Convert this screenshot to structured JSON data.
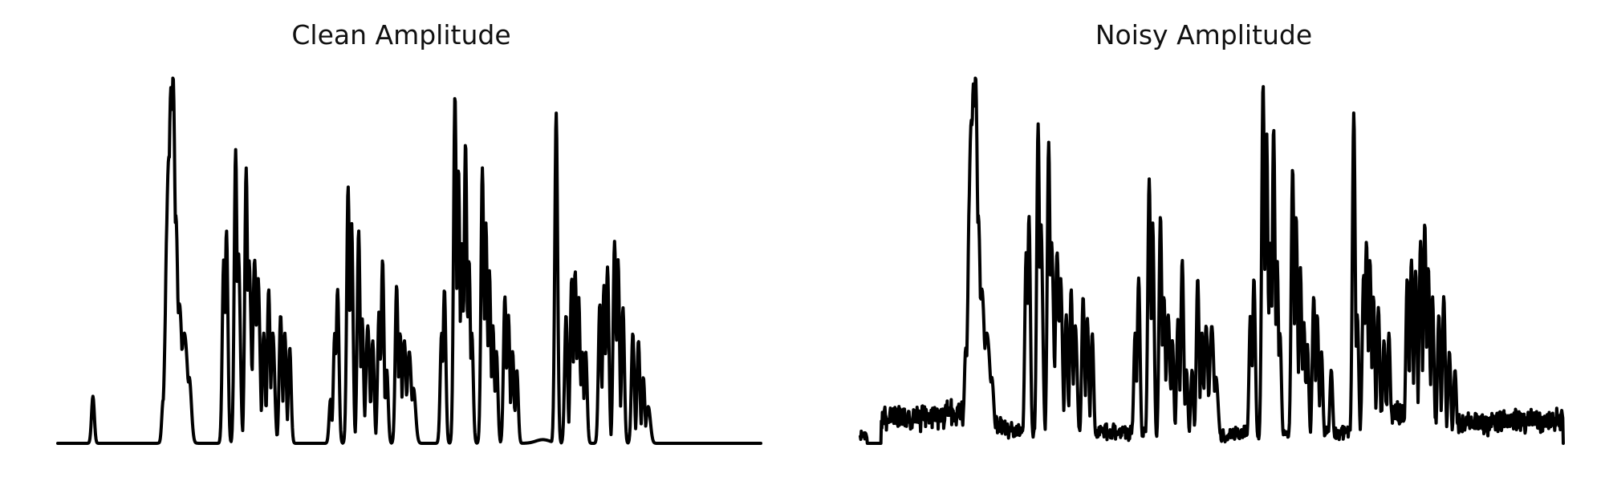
{
  "charts": {
    "left": {
      "title": "Clean Amplitude"
    },
    "right": {
      "title": "Noisy Amplitude"
    }
  },
  "colors": {
    "line": "#000000",
    "background": "#ffffff"
  },
  "chart_data": [
    {
      "type": "line",
      "title": "Clean Amplitude",
      "axes_visible": false,
      "grid": false,
      "xlabel": "",
      "ylabel": "",
      "xlim": [
        0,
        1
      ],
      "ylim": [
        0,
        1
      ],
      "x_range": [
        0,
        1
      ],
      "peaks": [
        [
          0.05,
          0.128,
          0.002
        ],
        [
          0.15,
          0.12,
          0.002
        ],
        [
          0.155,
          0.57,
          0.002
        ],
        [
          0.158,
          0.78,
          0.004
        ],
        [
          0.161,
          0.97,
          0.0035
        ],
        [
          0.164,
          1.0,
          0.003
        ],
        [
          0.168,
          0.62,
          0.003
        ],
        [
          0.173,
          0.38,
          0.004
        ],
        [
          0.18,
          0.3,
          0.005
        ],
        [
          0.187,
          0.18,
          0.003
        ],
        [
          0.236,
          0.5,
          0.002
        ],
        [
          0.24,
          0.58,
          0.002
        ],
        [
          0.253,
          0.8,
          0.002
        ],
        [
          0.257,
          0.52,
          0.0025
        ],
        [
          0.268,
          0.75,
          0.002
        ],
        [
          0.272,
          0.5,
          0.003
        ],
        [
          0.28,
          0.5,
          0.0025
        ],
        [
          0.285,
          0.45,
          0.0025
        ],
        [
          0.293,
          0.3,
          0.002
        ],
        [
          0.3,
          0.42,
          0.002
        ],
        [
          0.306,
          0.3,
          0.0025
        ],
        [
          0.317,
          0.35,
          0.002
        ],
        [
          0.323,
          0.3,
          0.002
        ],
        [
          0.33,
          0.26,
          0.002
        ],
        [
          0.388,
          0.12,
          0.002
        ],
        [
          0.394,
          0.3,
          0.002
        ],
        [
          0.398,
          0.42,
          0.002
        ],
        [
          0.413,
          0.7,
          0.002
        ],
        [
          0.418,
          0.6,
          0.002
        ],
        [
          0.428,
          0.58,
          0.002
        ],
        [
          0.433,
          0.34,
          0.002
        ],
        [
          0.441,
          0.32,
          0.0025
        ],
        [
          0.448,
          0.28,
          0.002
        ],
        [
          0.457,
          0.36,
          0.002
        ],
        [
          0.462,
          0.5,
          0.002
        ],
        [
          0.468,
          0.2,
          0.002
        ],
        [
          0.482,
          0.43,
          0.002
        ],
        [
          0.487,
          0.3,
          0.002
        ],
        [
          0.493,
          0.28,
          0.0025
        ],
        [
          0.5,
          0.25,
          0.003
        ],
        [
          0.506,
          0.15,
          0.003
        ],
        [
          0.546,
          0.3,
          0.002
        ],
        [
          0.55,
          0.42,
          0.002
        ],
        [
          0.565,
          0.95,
          0.002
        ],
        [
          0.57,
          0.75,
          0.002
        ],
        [
          0.575,
          0.55,
          0.002
        ],
        [
          0.58,
          0.82,
          0.002
        ],
        [
          0.585,
          0.5,
          0.002
        ],
        [
          0.589,
          0.3,
          0.002
        ],
        [
          0.604,
          0.75,
          0.002
        ],
        [
          0.609,
          0.6,
          0.002
        ],
        [
          0.614,
          0.47,
          0.002
        ],
        [
          0.619,
          0.32,
          0.002
        ],
        [
          0.624,
          0.25,
          0.002
        ],
        [
          0.636,
          0.4,
          0.002
        ],
        [
          0.641,
          0.35,
          0.002
        ],
        [
          0.647,
          0.25,
          0.002
        ],
        [
          0.653,
          0.2,
          0.002
        ],
        [
          0.69,
          0.01,
          0.01
        ],
        [
          0.709,
          0.9,
          0.002
        ],
        [
          0.723,
          0.35,
          0.002
        ],
        [
          0.731,
          0.45,
          0.002
        ],
        [
          0.736,
          0.47,
          0.002
        ],
        [
          0.741,
          0.4,
          0.002
        ],
        [
          0.746,
          0.25,
          0.002
        ],
        [
          0.751,
          0.25,
          0.002
        ],
        [
          0.771,
          0.38,
          0.002
        ],
        [
          0.777,
          0.43,
          0.002
        ],
        [
          0.782,
          0.48,
          0.002
        ],
        [
          0.792,
          0.55,
          0.002
        ],
        [
          0.797,
          0.5,
          0.002
        ],
        [
          0.804,
          0.37,
          0.002
        ],
        [
          0.818,
          0.3,
          0.002
        ],
        [
          0.826,
          0.28,
          0.002
        ],
        [
          0.833,
          0.18,
          0.002
        ],
        [
          0.84,
          0.1,
          0.003
        ]
      ]
    },
    {
      "type": "line",
      "title": "Noisy Amplitude",
      "axes_visible": false,
      "grid": false,
      "xlabel": "",
      "ylabel": "",
      "xlim": [
        0,
        1
      ],
      "ylim": [
        0,
        1
      ],
      "x_range": [
        0,
        1
      ],
      "noise_bands": [
        [
          0.0,
          0.01,
          0.04,
          0.02
        ],
        [
          0.03,
          0.12,
          0.11,
          0.03
        ],
        [
          0.12,
          0.16,
          0.13,
          0.03
        ],
        [
          0.16,
          0.21,
          0.08,
          0.03
        ],
        [
          0.21,
          0.42,
          0.06,
          0.03
        ],
        [
          0.42,
          0.53,
          0.04,
          0.02
        ],
        [
          0.53,
          0.7,
          0.05,
          0.02
        ],
        [
          0.7,
          0.72,
          0.08,
          0.03
        ],
        [
          0.72,
          0.78,
          0.12,
          0.03
        ],
        [
          0.78,
          0.9,
          0.09,
          0.03
        ],
        [
          0.9,
          1.0,
          0.1,
          0.03
        ]
      ],
      "peaks": [
        [
          0.15,
          0.26,
          0.002
        ],
        [
          0.155,
          0.65,
          0.002
        ],
        [
          0.158,
          0.88,
          0.004
        ],
        [
          0.161,
          0.98,
          0.0035
        ],
        [
          0.164,
          1.0,
          0.003
        ],
        [
          0.168,
          0.62,
          0.003
        ],
        [
          0.173,
          0.42,
          0.004
        ],
        [
          0.18,
          0.3,
          0.005
        ],
        [
          0.187,
          0.18,
          0.003
        ],
        [
          0.236,
          0.52,
          0.002
        ],
        [
          0.24,
          0.62,
          0.002
        ],
        [
          0.253,
          0.87,
          0.002
        ],
        [
          0.257,
          0.6,
          0.0025
        ],
        [
          0.268,
          0.82,
          0.002
        ],
        [
          0.272,
          0.55,
          0.003
        ],
        [
          0.28,
          0.52,
          0.0025
        ],
        [
          0.285,
          0.45,
          0.0025
        ],
        [
          0.293,
          0.35,
          0.002
        ],
        [
          0.3,
          0.42,
          0.002
        ],
        [
          0.306,
          0.32,
          0.0025
        ],
        [
          0.317,
          0.4,
          0.002
        ],
        [
          0.323,
          0.34,
          0.002
        ],
        [
          0.33,
          0.3,
          0.002
        ],
        [
          0.391,
          0.3,
          0.002
        ],
        [
          0.396,
          0.45,
          0.002
        ],
        [
          0.411,
          0.72,
          0.002
        ],
        [
          0.416,
          0.6,
          0.002
        ],
        [
          0.427,
          0.62,
          0.002
        ],
        [
          0.432,
          0.4,
          0.002
        ],
        [
          0.438,
          0.35,
          0.0025
        ],
        [
          0.444,
          0.28,
          0.002
        ],
        [
          0.452,
          0.34,
          0.002
        ],
        [
          0.458,
          0.5,
          0.002
        ],
        [
          0.464,
          0.2,
          0.002
        ],
        [
          0.472,
          0.2,
          0.002
        ],
        [
          0.48,
          0.45,
          0.002
        ],
        [
          0.486,
          0.3,
          0.002
        ],
        [
          0.492,
          0.32,
          0.0025
        ],
        [
          0.5,
          0.32,
          0.003
        ],
        [
          0.506,
          0.18,
          0.003
        ],
        [
          0.555,
          0.35,
          0.002
        ],
        [
          0.56,
          0.45,
          0.002
        ],
        [
          0.573,
          0.98,
          0.002
        ],
        [
          0.578,
          0.85,
          0.002
        ],
        [
          0.583,
          0.55,
          0.002
        ],
        [
          0.588,
          0.86,
          0.002
        ],
        [
          0.593,
          0.5,
          0.002
        ],
        [
          0.597,
          0.3,
          0.002
        ],
        [
          0.615,
          0.75,
          0.002
        ],
        [
          0.62,
          0.62,
          0.002
        ],
        [
          0.626,
          0.48,
          0.002
        ],
        [
          0.631,
          0.33,
          0.002
        ],
        [
          0.636,
          0.27,
          0.002
        ],
        [
          0.645,
          0.4,
          0.002
        ],
        [
          0.65,
          0.35,
          0.002
        ],
        [
          0.656,
          0.25,
          0.002
        ],
        [
          0.67,
          0.2,
          0.002
        ],
        [
          0.702,
          0.9,
          0.002
        ],
        [
          0.707,
          0.35,
          0.002
        ],
        [
          0.716,
          0.46,
          0.002
        ],
        [
          0.72,
          0.55,
          0.002
        ],
        [
          0.725,
          0.5,
          0.002
        ],
        [
          0.73,
          0.4,
          0.002
        ],
        [
          0.737,
          0.37,
          0.002
        ],
        [
          0.745,
          0.28,
          0.002
        ],
        [
          0.752,
          0.3,
          0.002
        ],
        [
          0.778,
          0.45,
          0.002
        ],
        [
          0.784,
          0.5,
          0.002
        ],
        [
          0.79,
          0.47,
          0.002
        ],
        [
          0.797,
          0.55,
          0.002
        ],
        [
          0.803,
          0.6,
          0.002
        ],
        [
          0.808,
          0.48,
          0.002
        ],
        [
          0.814,
          0.4,
          0.002
        ],
        [
          0.823,
          0.35,
          0.002
        ],
        [
          0.83,
          0.4,
          0.002
        ],
        [
          0.838,
          0.25,
          0.002
        ],
        [
          0.846,
          0.2,
          0.002
        ]
      ]
    }
  ]
}
